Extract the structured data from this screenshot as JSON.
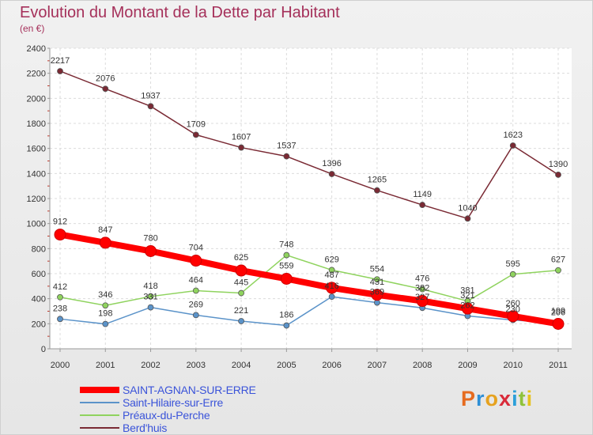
{
  "header": {
    "title": "Evolution du Montant de la Dette par Habitant",
    "subtitle": "(en €)"
  },
  "logo": {
    "letters": [
      "P",
      "r",
      "o",
      "x",
      "i",
      "t",
      "i"
    ],
    "colors": [
      "#e66b1f",
      "#2e8fd6",
      "#e6a21f",
      "#d92b3a",
      "#2b9fd9",
      "#8fc23a",
      "#e6c21f"
    ]
  },
  "chart_data": {
    "type": "line",
    "title": "Evolution du Montant de la Dette par Habitant",
    "subtitle": "(en €)",
    "x": [
      "2000",
      "2001",
      "2002",
      "2003",
      "2004",
      "2005",
      "2006",
      "2007",
      "2008",
      "2009",
      "2010",
      "2011"
    ],
    "ylim": [
      0,
      2400
    ],
    "yticks": [
      "0",
      "200",
      "400",
      "600",
      "800",
      "1000",
      "1200",
      "1400",
      "1600",
      "1800",
      "2000",
      "2200",
      "2400"
    ],
    "grid": true,
    "legend_position": "bottom-left",
    "series": [
      {
        "name": "SAINT-AGNAN-SUR-ERRE",
        "color": "#ff0000",
        "values": [
          912,
          847,
          780,
          704,
          625,
          559,
          487,
          431,
          382,
          321,
          260,
          199
        ],
        "labels": [
          "912",
          "847",
          "780",
          "704",
          "625",
          "559",
          "487",
          "431",
          "382",
          "321",
          "260",
          "199"
        ]
      },
      {
        "name": "Saint-Hilaire-sur-Erre",
        "color": "#5b93c9",
        "values": [
          238,
          198,
          331,
          269,
          221,
          186,
          416,
          369,
          327,
          262,
          230,
          206
        ],
        "labels": [
          "238",
          "198",
          "331",
          "269",
          "221",
          "186",
          "416",
          "369",
          "327",
          "262",
          "230",
          "206"
        ]
      },
      {
        "name": "Préaux-du-Perche",
        "color": "#8fd35e",
        "values": [
          412,
          346,
          418,
          464,
          445,
          748,
          629,
          554,
          476,
          381,
          595,
          627
        ],
        "labels": [
          "412",
          "346",
          "418",
          "464",
          "445",
          "748",
          "629",
          "554",
          "476",
          "381",
          "595",
          "627"
        ]
      },
      {
        "name": "Berd'huis",
        "color": "#7a2a34",
        "values": [
          2217,
          2076,
          1937,
          1709,
          1607,
          1537,
          1396,
          1265,
          1149,
          1040,
          1623,
          1390
        ],
        "labels": [
          "2217",
          "2076",
          "1937",
          "1709",
          "1607",
          "1537",
          "1396",
          "1265",
          "1149",
          "1040",
          "1623",
          "1390"
        ]
      }
    ]
  }
}
